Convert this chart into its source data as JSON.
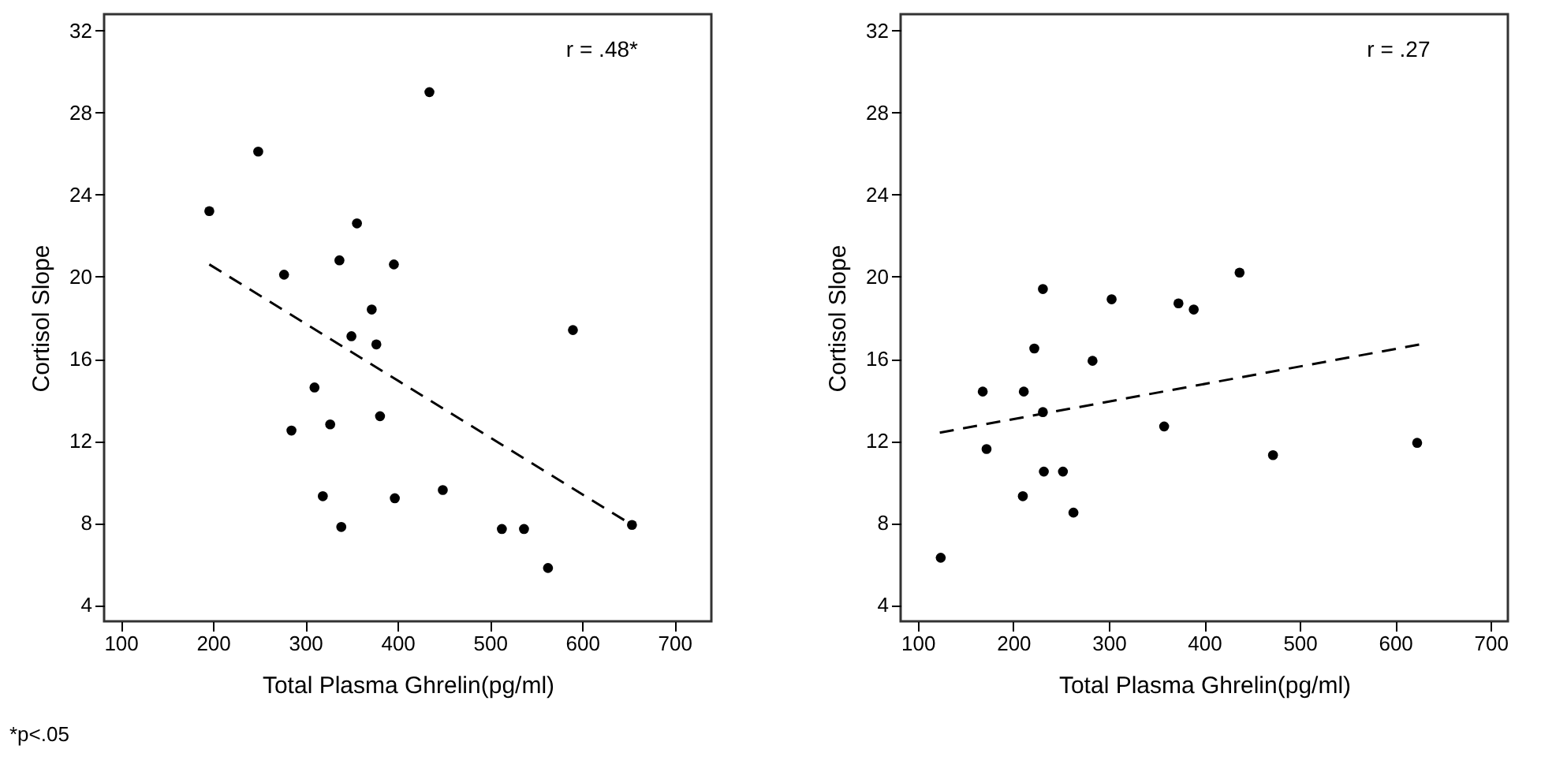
{
  "chart_data": [
    {
      "type": "scatter",
      "xlabel": "Total Plasma Ghrelin(pg/ml)",
      "ylabel": "Cortisol Slope",
      "xlim": [
        82,
        740
      ],
      "ylim": [
        3.2,
        32.8
      ],
      "xticks": [
        100,
        200,
        300,
        400,
        500,
        600,
        700
      ],
      "yticks": [
        4,
        8,
        12,
        16,
        20,
        24,
        28,
        32
      ],
      "grid": false,
      "marker": "circle",
      "series": [
        {
          "color": "#000000",
          "x": [
            196,
            249,
            434.5,
            277,
            356,
            337,
            396,
            372,
            350,
            377,
            590,
            310,
            285,
            327,
            381,
            319,
            397,
            449,
            339,
            513,
            537,
            563,
            654
          ],
          "values": [
            23.2,
            26.1,
            29.0,
            20.1,
            22.6,
            20.8,
            20.6,
            18.4,
            17.1,
            16.7,
            17.4,
            14.6,
            12.5,
            12.8,
            13.2,
            9.3,
            9.2,
            9.6,
            7.8,
            7.7,
            7.7,
            5.8,
            7.9
          ]
        },
        {
          "type": "line",
          "line_style": "dashed",
          "marker": "none",
          "color": "#000000",
          "x": [
            196,
            654
          ],
          "values": [
            20.6,
            7.9
          ]
        }
      ],
      "annotations": [
        "r = .48*",
        "*p<.05"
      ]
    },
    {
      "type": "scatter",
      "xlabel": "Total Plasma Ghrelin(pg/ml)",
      "ylabel": "Cortisol Slope",
      "xlim": [
        82,
        718
      ],
      "ylim": [
        3.2,
        32.8
      ],
      "xticks": [
        100,
        200,
        300,
        400,
        500,
        600,
        700
      ],
      "yticks": [
        4,
        8,
        12,
        16,
        20,
        24,
        28,
        32
      ],
      "grid": false,
      "marker": "circle",
      "series": [
        {
          "color": "#000000",
          "x": [
            124,
            168,
            172,
            210,
            211,
            222,
            231,
            231,
            232,
            252,
            263,
            283,
            303,
            358,
            373,
            389,
            437,
            472,
            623
          ],
          "values": [
            6.3,
            14.4,
            11.6,
            9.3,
            14.4,
            16.5,
            19.4,
            13.4,
            10.5,
            10.5,
            8.5,
            15.9,
            18.9,
            12.7,
            18.7,
            18.4,
            20.2,
            11.3,
            11.9
          ]
        },
        {
          "type": "line",
          "line_style": "dashed",
          "marker": "none",
          "color": "#000000",
          "x": [
            123,
            626
          ],
          "values": [
            12.4,
            16.7
          ]
        }
      ],
      "annotations": [
        "r = .27"
      ]
    }
  ]
}
